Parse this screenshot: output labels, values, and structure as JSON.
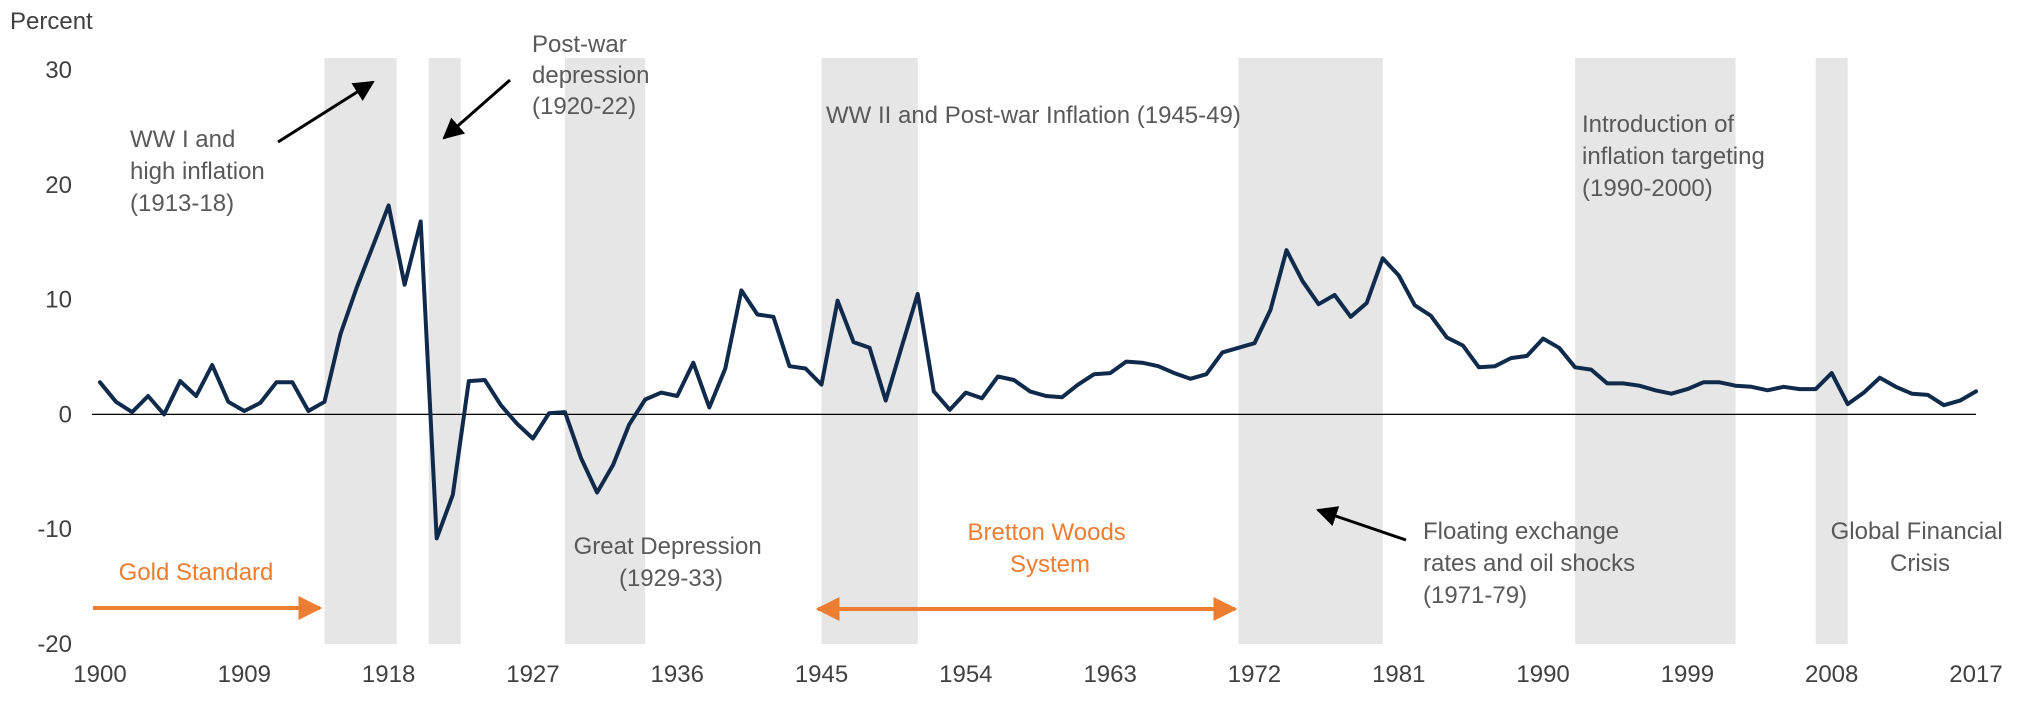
{
  "chart_data": {
    "type": "line",
    "ylabel": "Percent",
    "ylim": [
      -20,
      30
    ],
    "xlim": [
      1900,
      2017
    ],
    "yticks": [
      "30",
      "20",
      "10",
      "0",
      "-10",
      "-20"
    ],
    "xticks": [
      "1900",
      "1909",
      "1918",
      "1927",
      "1936",
      "1945",
      "1954",
      "1963",
      "1972",
      "1981",
      "1990",
      "1999",
      "2008",
      "2017"
    ],
    "grid": false,
    "line_color": "#0F2A4A",
    "shading_color": "#E6E6E6",
    "highlight_color": "#ED7D31",
    "shaded_periods": [
      {
        "start": 1914,
        "end": 1918.5
      },
      {
        "start": 1920.5,
        "end": 1922.5
      },
      {
        "start": 1929,
        "end": 1934
      },
      {
        "start": 1945,
        "end": 1951
      },
      {
        "start": 1971,
        "end": 1980
      },
      {
        "start": 1992,
        "end": 2002
      },
      {
        "start": 2007,
        "end": 2009
      }
    ],
    "x": [
      1900,
      1901,
      1902,
      1903,
      1904,
      1905,
      1906,
      1907,
      1908,
      1909,
      1910,
      1911,
      1912,
      1913,
      1914,
      1915,
      1916,
      1917,
      1918,
      1919,
      1920,
      1921,
      1922,
      1923,
      1924,
      1925,
      1926,
      1927,
      1928,
      1929,
      1930,
      1931,
      1932,
      1933,
      1934,
      1935,
      1936,
      1937,
      1938,
      1939,
      1940,
      1941,
      1942,
      1943,
      1944,
      1945,
      1946,
      1947,
      1948,
      1949,
      1950,
      1951,
      1952,
      1953,
      1954,
      1955,
      1956,
      1957,
      1958,
      1959,
      1960,
      1961,
      1962,
      1963,
      1964,
      1965,
      1966,
      1967,
      1968,
      1969,
      1970,
      1971,
      1972,
      1973,
      1974,
      1975,
      1976,
      1977,
      1978,
      1979,
      1980,
      1981,
      1982,
      1983,
      1984,
      1985,
      1986,
      1987,
      1988,
      1989,
      1990,
      1991,
      1992,
      1993,
      1994,
      1995,
      1996,
      1997,
      1998,
      1999,
      2000,
      2001,
      2002,
      2003,
      2004,
      2005,
      2006,
      2007,
      2008,
      2009,
      2010,
      2011,
      2012,
      2013,
      2014,
      2015,
      2016,
      2017
    ],
    "series": [
      {
        "values": [
          2.8,
          1.1,
          0.2,
          1.6,
          0.0,
          2.9,
          1.6,
          4.3,
          1.1,
          0.3,
          1.0,
          2.8,
          2.8,
          0.3,
          1.1,
          7.0,
          11.0,
          14.6,
          18.2,
          11.3,
          16.8,
          -10.8,
          -7.0,
          2.9,
          3.0,
          0.8,
          -0.8,
          -2.1,
          0.1,
          0.2,
          -3.8,
          -6.8,
          -4.4,
          -0.9,
          1.3,
          1.9,
          1.6,
          4.5,
          0.6,
          4.0,
          10.8,
          8.7,
          8.5,
          4.2,
          4.0,
          2.6,
          9.9,
          6.3,
          5.8,
          1.2,
          5.9,
          10.5,
          2.0,
          0.4,
          1.9,
          1.4,
          3.3,
          3.0,
          2.0,
          1.6,
          1.5,
          2.6,
          3.5,
          3.6,
          4.6,
          4.5,
          4.2,
          3.6,
          3.1,
          3.5,
          5.4,
          5.8,
          6.2,
          9.1,
          14.3,
          11.6,
          9.6,
          10.4,
          8.5,
          9.7,
          13.6,
          12.1,
          9.5,
          8.6,
          6.7,
          6.0,
          4.1,
          4.2,
          4.9,
          5.1,
          6.6,
          5.8,
          4.1,
          3.9,
          2.7,
          2.7,
          2.5,
          2.1,
          1.8,
          2.2,
          2.8,
          2.8,
          2.5,
          2.4,
          2.1,
          2.4,
          2.2,
          2.2,
          3.6,
          0.9,
          1.9,
          3.2,
          2.4,
          1.8,
          1.7,
          0.8,
          1.2,
          2.0
        ]
      }
    ]
  },
  "annotations": {
    "ww1": [
      "WW I and",
      "high inflation",
      "(1913-18)"
    ],
    "postwar": [
      "Post-war",
      "depression",
      "(1920-22)"
    ],
    "ww2": "WW II and Post-war Inflation (1945-49)",
    "targeting": [
      "Introduction of",
      "inflation targeting",
      "(1990-2000)"
    ],
    "great_depression": [
      "Great Depression",
      "(1929-33)"
    ],
    "floating": [
      "Floating exchange",
      "rates and oil shocks",
      "(1971-79)"
    ],
    "gfc": [
      "Global Financial",
      "Crisis"
    ],
    "gold_standard": "Gold Standard",
    "bretton_woods": [
      "Bretton Woods",
      "System"
    ]
  }
}
